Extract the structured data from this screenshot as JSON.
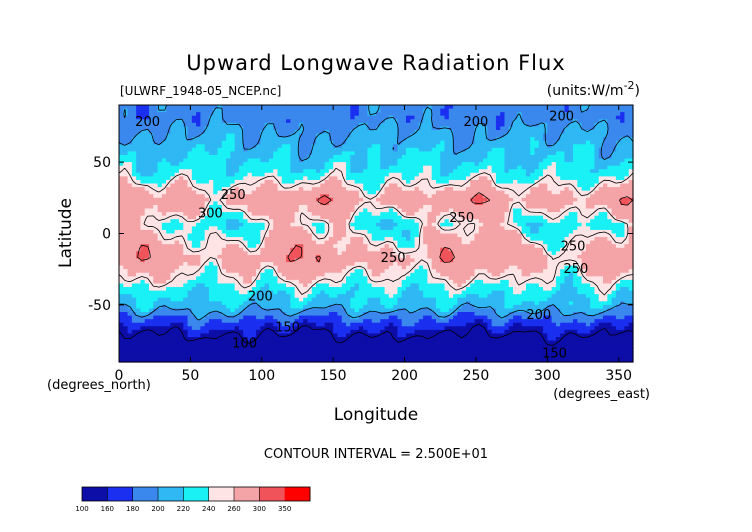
{
  "chart_data": {
    "type": "heatmap",
    "title": "Upward Longwave Radiation Flux",
    "source_label": "[ULWRF_1948-05_NCEP.nc]",
    "units_label": "(units:W/m^2)",
    "xlabel": "Longitude",
    "ylabel": "Latitude",
    "x_units_label": "(degrees_east)",
    "y_units_label": "(degrees_north)",
    "xlim": [
      0,
      360
    ],
    "ylim": [
      -90,
      90
    ],
    "x_ticks": [
      0,
      50,
      100,
      150,
      200,
      250,
      300,
      350
    ],
    "y_ticks": [
      -50,
      0,
      50
    ],
    "contour_interval_text": "CONTOUR INTERVAL = 2.500E+01",
    "contour_labels": [
      {
        "text": "200",
        "lon": 20,
        "lat": 78
      },
      {
        "text": "200",
        "lon": 250,
        "lat": 78
      },
      {
        "text": "200",
        "lon": 310,
        "lat": 82
      },
      {
        "text": "250",
        "lon": 80,
        "lat": 27
      },
      {
        "text": "300",
        "lon": 64,
        "lat": 14
      },
      {
        "text": "250",
        "lon": 240,
        "lat": 11
      },
      {
        "text": "250",
        "lon": 192,
        "lat": -17
      },
      {
        "text": "250",
        "lon": 318,
        "lat": -9
      },
      {
        "text": "250",
        "lon": 320,
        "lat": -25
      },
      {
        "text": "200",
        "lon": 99,
        "lat": -44
      },
      {
        "text": "200",
        "lon": 294,
        "lat": -57
      },
      {
        "text": "150",
        "lon": 118,
        "lat": -66
      },
      {
        "text": "150",
        "lon": 305,
        "lat": -84
      },
      {
        "text": "100",
        "lon": 88,
        "lat": -77
      }
    ],
    "colorbar": {
      "levels": [
        100,
        160,
        180,
        200,
        220,
        240,
        260,
        300,
        350
      ],
      "colors": [
        "#0d0da8",
        "#1a2ff0",
        "#3a88ee",
        "#2fb8f3",
        "#19f1f5",
        "#ffe4e6",
        "#f4a3a6",
        "#f0545a",
        "#ff0000"
      ]
    },
    "latitude_bands": [
      {
        "lat_range": [
          -90,
          -68
        ],
        "value_range": [
          100,
          160
        ]
      },
      {
        "lat_range": [
          -68,
          -58
        ],
        "value_range": [
          160,
          180
        ]
      },
      {
        "lat_range": [
          -58,
          -45
        ],
        "value_range": [
          200,
          220
        ]
      },
      {
        "lat_range": [
          -45,
          -35
        ],
        "value_range": [
          220,
          240
        ]
      },
      {
        "lat_range": [
          -35,
          0
        ],
        "value_range": [
          260,
          300
        ]
      },
      {
        "lat_range": [
          0,
          12
        ],
        "value_range": [
          220,
          260
        ]
      },
      {
        "lat_range": [
          12,
          35
        ],
        "value_range": [
          260,
          300
        ]
      },
      {
        "lat_range": [
          35,
          50
        ],
        "value_range": [
          220,
          240
        ]
      },
      {
        "lat_range": [
          50,
          72
        ],
        "value_range": [
          200,
          220
        ]
      },
      {
        "lat_range": [
          72,
          90
        ],
        "value_range": [
          180,
          200
        ]
      }
    ]
  }
}
